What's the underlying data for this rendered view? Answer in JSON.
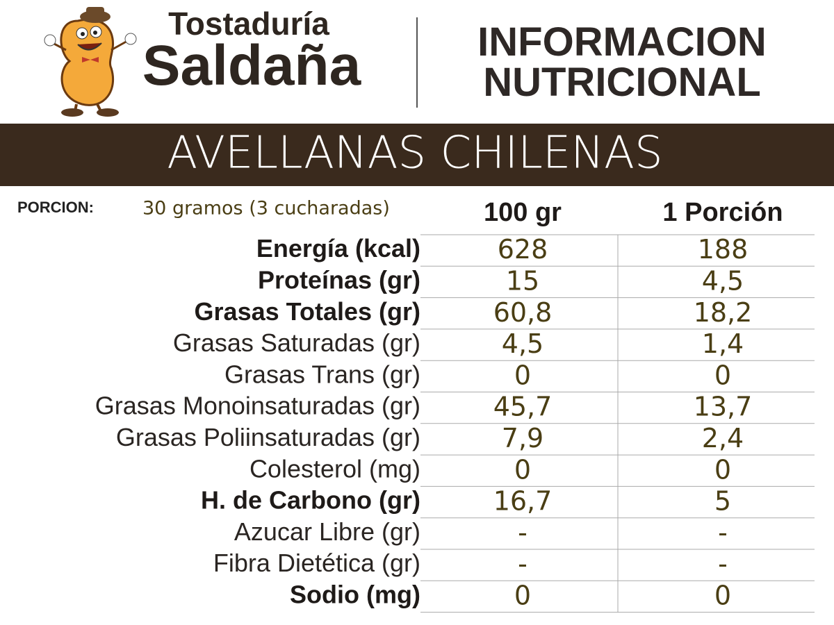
{
  "header": {
    "brand": [
      "Tostaduría",
      "Saldaña"
    ],
    "title": [
      "INFORMACION",
      "NUTRICIONAL"
    ]
  },
  "product": "AVELLANAS CHILENAS",
  "portion": {
    "label": "PORCION:",
    "value": "30 gramos (3 cucharadas)"
  },
  "table": {
    "columns": [
      "100 gr",
      "1 Porción"
    ],
    "rows": [
      {
        "label": "Energía (kcal)",
        "bold": true,
        "values": [
          "628",
          "188"
        ]
      },
      {
        "label": "Proteínas (gr)",
        "bold": true,
        "values": [
          "15",
          "4,5"
        ]
      },
      {
        "label": "Grasas Totales (gr)",
        "bold": true,
        "values": [
          "60,8",
          "18,2"
        ]
      },
      {
        "label": "Grasas Saturadas (gr)",
        "bold": false,
        "values": [
          "4,5",
          "1,4"
        ]
      },
      {
        "label": "Grasas Trans (gr)",
        "bold": false,
        "values": [
          "0",
          "0"
        ]
      },
      {
        "label": "Grasas Monoinsaturadas (gr)",
        "bold": false,
        "values": [
          "45,7",
          "13,7"
        ]
      },
      {
        "label": "Grasas Poliinsaturadas (gr)",
        "bold": false,
        "values": [
          "7,9",
          "2,4"
        ]
      },
      {
        "label": "Colesterol (mg)",
        "bold": false,
        "values": [
          "0",
          "0"
        ]
      },
      {
        "label": "H. de Carbono (gr)",
        "bold": true,
        "values": [
          "16,7",
          "5"
        ]
      },
      {
        "label": "Azucar Libre (gr)",
        "bold": false,
        "values": [
          "-",
          "-"
        ]
      },
      {
        "label": "Fibra Dietética (gr)",
        "bold": false,
        "values": [
          "-",
          "-"
        ]
      },
      {
        "label": "Sodio (mg)",
        "bold": true,
        "values": [
          "0",
          "0"
        ]
      }
    ]
  }
}
